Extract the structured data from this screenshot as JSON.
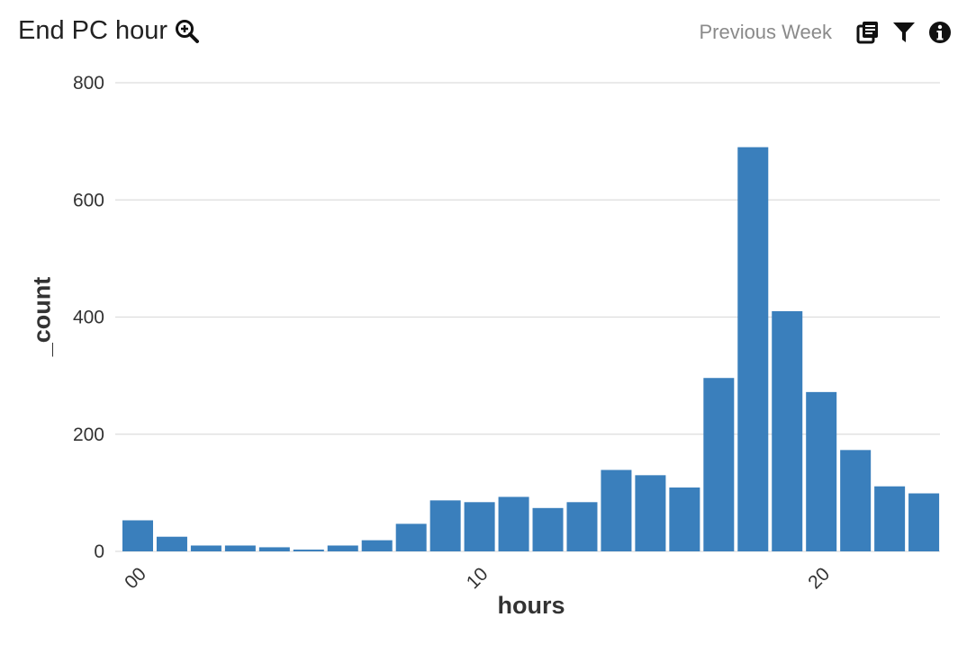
{
  "header": {
    "title": "End PC hour",
    "timeframe": "Previous Week"
  },
  "icons": {
    "zoom": "zoom-in-icon",
    "copy": "copy-icon",
    "filter": "filter-icon",
    "info": "info-icon"
  },
  "colors": {
    "bar": "#3a7fbc",
    "grid": "#dddddd"
  },
  "chart_data": {
    "type": "bar",
    "xlabel": "hours",
    "ylabel": "_count",
    "ylim": [
      0,
      800
    ],
    "yticks": [
      "0",
      "200",
      "400",
      "600",
      "800"
    ],
    "xticks": [
      {
        "label": "00",
        "at": 0
      },
      {
        "label": "10",
        "at": 10
      },
      {
        "label": "20",
        "at": 20
      }
    ],
    "categories": [
      "00",
      "01",
      "02",
      "03",
      "04",
      "05",
      "06",
      "07",
      "08",
      "09",
      "10",
      "11",
      "12",
      "13",
      "14",
      "15",
      "16",
      "17",
      "18",
      "19",
      "20",
      "21",
      "22",
      "23"
    ],
    "values": [
      53,
      25,
      10,
      10,
      7,
      3,
      10,
      19,
      47,
      87,
      84,
      93,
      74,
      84,
      139,
      130,
      109,
      296,
      690,
      410,
      272,
      173,
      111,
      99
    ],
    "grid": true
  }
}
